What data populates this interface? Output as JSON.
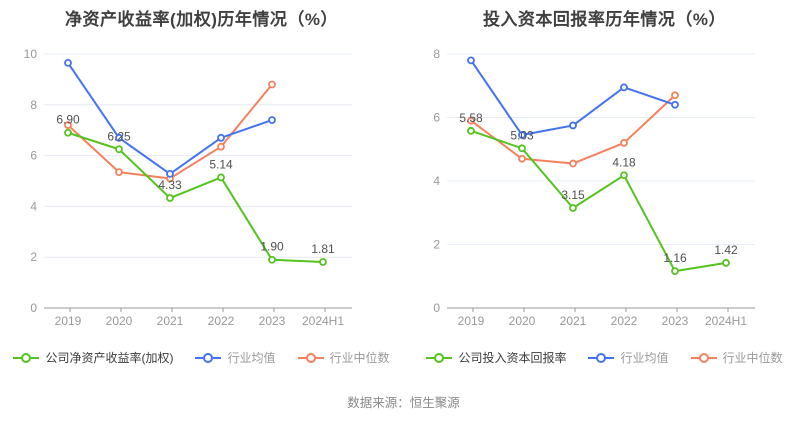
{
  "source": "数据来源：恒生聚源",
  "palette": {
    "green": "#55c31e",
    "blue": "#4473f0",
    "orange": "#f5815c",
    "grid": "#e6ecf4",
    "axis": "#999999",
    "value_label": "#4f4f4f"
  },
  "chart_data": [
    {
      "type": "line",
      "title": "净资产收益率(加权)历年情况（%）",
      "categories": [
        "2019",
        "2020",
        "2021",
        "2022",
        "2023",
        "2024H1"
      ],
      "ylim": [
        0,
        10
      ],
      "y_ticks": [
        0,
        2,
        4,
        6,
        8,
        10
      ],
      "grid": true,
      "legend_position": "bottom",
      "series": [
        {
          "name": "公司净资产收益率(加权)",
          "color": "green",
          "values": [
            6.9,
            6.25,
            4.33,
            5.14,
            1.9,
            1.81
          ],
          "labels": [
            "6.90",
            "6.25",
            "4.33",
            "5.14",
            "1.90",
            "1.81"
          ]
        },
        {
          "name": "行业均值",
          "color": "blue",
          "values": [
            9.65,
            6.7,
            5.28,
            6.7,
            7.4,
            null
          ]
        },
        {
          "name": "行业中位数",
          "color": "orange",
          "values": [
            7.2,
            5.35,
            5.1,
            6.35,
            8.8,
            null
          ]
        }
      ]
    },
    {
      "type": "line",
      "title": "投入资本回报率历年情况（%）",
      "categories": [
        "2019",
        "2020",
        "2021",
        "2022",
        "2023",
        "2024H1"
      ],
      "ylim": [
        0,
        8
      ],
      "y_ticks": [
        0,
        2,
        4,
        6,
        8
      ],
      "grid": true,
      "legend_position": "bottom",
      "series": [
        {
          "name": "公司投入资本回报率",
          "color": "green",
          "values": [
            5.58,
            5.03,
            3.15,
            4.18,
            1.16,
            1.42
          ],
          "labels": [
            "5.58",
            "5.03",
            "3.15",
            "4.18",
            "1.16",
            "1.42"
          ]
        },
        {
          "name": "行业均值",
          "color": "blue",
          "values": [
            7.8,
            5.45,
            5.75,
            6.95,
            6.4,
            null
          ]
        },
        {
          "name": "行业中位数",
          "color": "orange",
          "values": [
            5.9,
            4.7,
            4.55,
            5.2,
            6.7,
            null
          ]
        }
      ]
    }
  ]
}
